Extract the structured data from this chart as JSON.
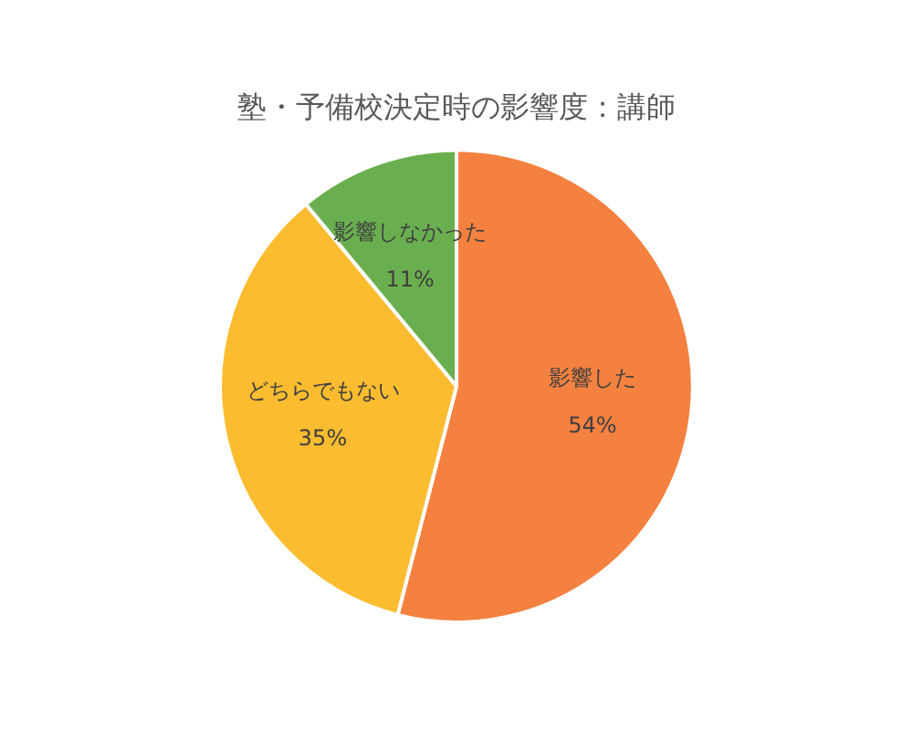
{
  "chart_data": {
    "type": "pie",
    "title": "塾・予備校決定時の影響度：講師",
    "categories": [
      "影響した",
      "どちらでもない",
      "影響しなかった"
    ],
    "values": [
      54,
      35,
      11
    ],
    "colors": [
      "#f4813f",
      "#fbbc30",
      "#6aaf4f"
    ],
    "value_labels": [
      "54%",
      "35%",
      "11%"
    ],
    "legend": false
  }
}
